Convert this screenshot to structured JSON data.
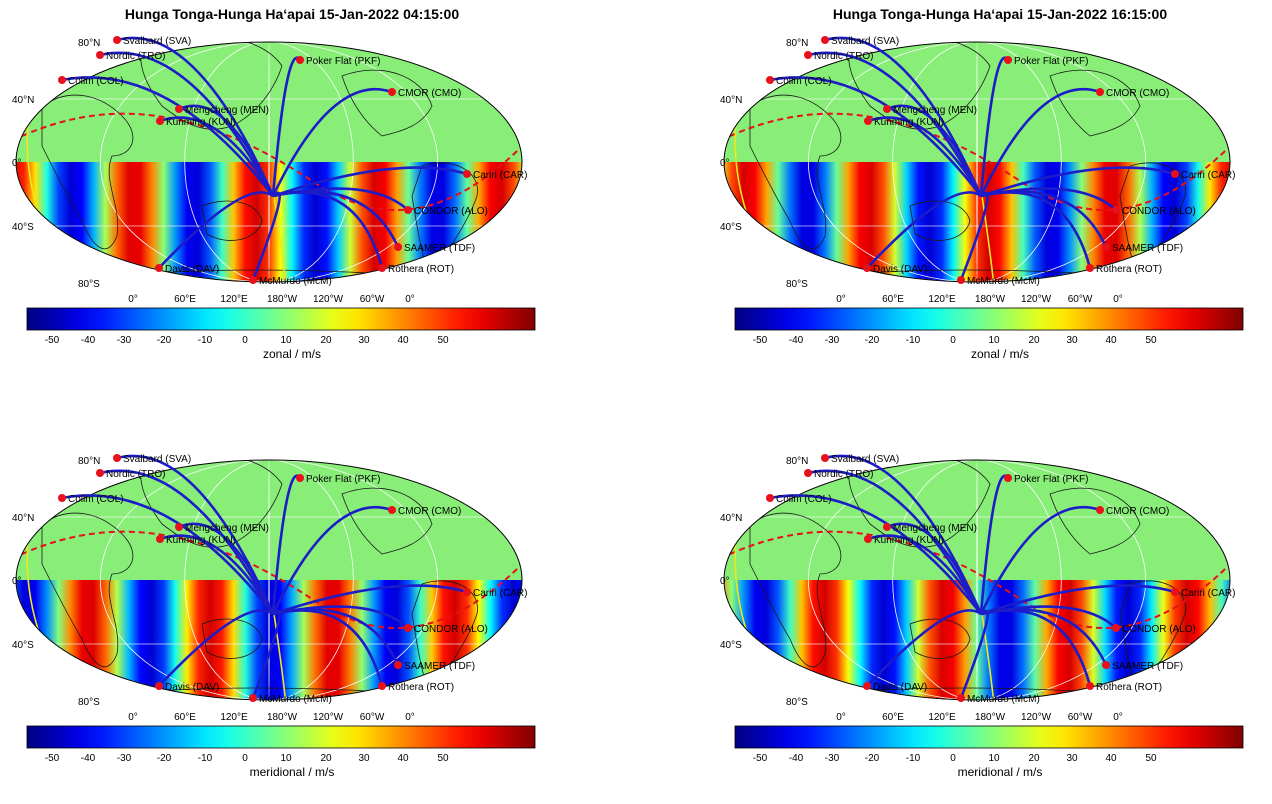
{
  "panels": [
    {
      "title": "Hunga Tonga-Hunga Haʻapai 15-Jan-2022 04:15:00",
      "colorbar_label": "zonal / m/s",
      "phase": 0
    },
    {
      "title": "Hunga Tonga-Hunga Haʻapai 15-Jan-2022 16:15:00",
      "colorbar_label": "zonal / m/s",
      "phase": 1
    },
    {
      "title": "",
      "colorbar_label": "meridional / m/s",
      "phase": 2
    },
    {
      "title": "",
      "colorbar_label": "meridional / m/s",
      "phase": 3
    }
  ],
  "lat_labels": [
    "80°N",
    "40°N",
    "0°",
    "40°S",
    "80°S"
  ],
  "lon_labels": [
    "0°",
    "60°E",
    "120°E",
    "180°W",
    "120°W",
    "60°W",
    "0°"
  ],
  "colorbar_ticks": [
    "-50",
    "-40",
    "-30",
    "-20",
    "-10",
    "0",
    "10",
    "20",
    "30",
    "40",
    "50"
  ],
  "stations": [
    {
      "name": "Svalbard (SVA)"
    },
    {
      "name": "Nordic (TRO)"
    },
    {
      "name": "Collm (COL)"
    },
    {
      "name": "Poker Flat (PKF)"
    },
    {
      "name": "CMOR (CMO)"
    },
    {
      "name": "Mengcheng (MEN)"
    },
    {
      "name": "Kunming (KUN)"
    },
    {
      "name": "Cariri (CAR)"
    },
    {
      "name": "CONDOR (ALO)"
    },
    {
      "name": "SAAMER (TDF)"
    },
    {
      "name": "Davis (DAV)"
    },
    {
      "name": "McMurdo (McM)"
    },
    {
      "name": "Rothera (ROT)"
    }
  ],
  "colors": {
    "land_bg": "#88ee78",
    "path": "#1c1cc8",
    "station": "#e8101a",
    "terminator": "#e8101a",
    "yellow_line": "#f2e61a"
  }
}
